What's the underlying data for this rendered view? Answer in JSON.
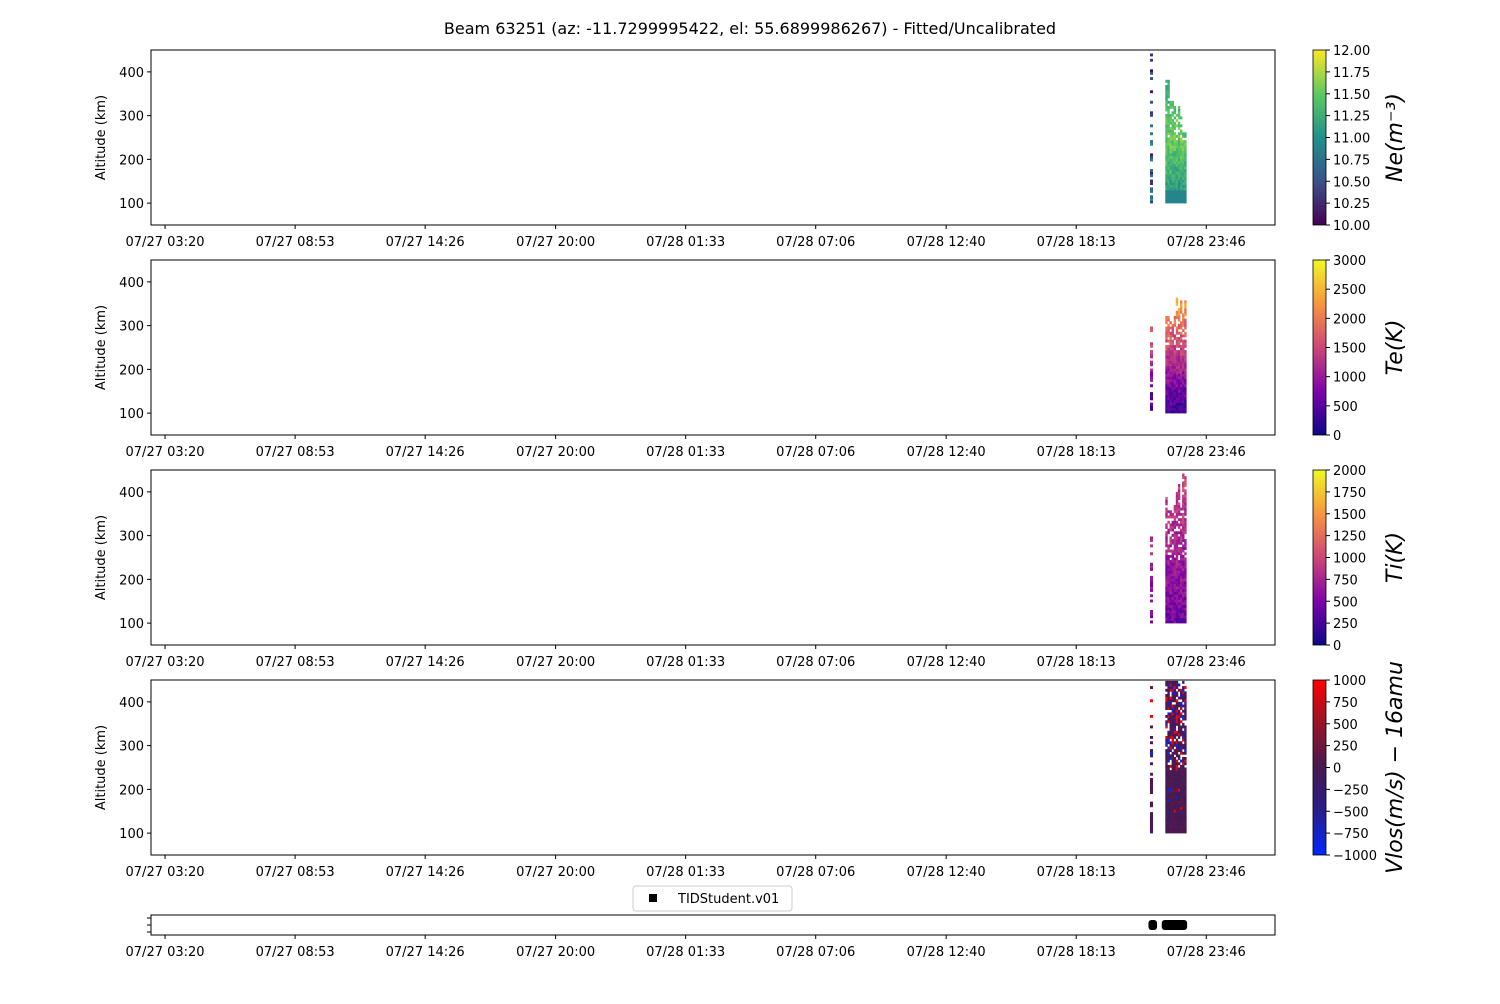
{
  "chart_data": {
    "type": "heatmap",
    "title": "Beam 63251 (az: -11.7299995422, el: 55.6899986267) - Fitted/Uncalibrated",
    "xlabel": "",
    "ylabel": "Altitude (km)",
    "x_ticks": [
      "07/27 03:20",
      "07/27 08:53",
      "07/27 14:26",
      "07/27 20:00",
      "07/28 01:33",
      "07/28 07:06",
      "07/28 12:40",
      "07/28 18:13",
      "07/28 23:46"
    ],
    "xlim": [
      "07/27 02:44",
      "07/29 02:42"
    ],
    "ylim": [
      50,
      450
    ],
    "y_ticks": [
      100,
      200,
      300,
      400
    ],
    "data_time_ranges": [
      [
        "07/28 21:22",
        "07/28 21:25"
      ],
      [
        "07/28 22:01",
        "07/28 22:55"
      ]
    ],
    "data_altitude_range": [
      100,
      445
    ],
    "panels": [
      {
        "name": "Ne",
        "colorbar_label": "Ne(m^-3)",
        "colorbar_label_display": "Ne(m⁻³)",
        "cmap": "viridis",
        "clim": [
          10,
          12
        ],
        "cb_ticks": [
          "10.00",
          "10.25",
          "10.50",
          "10.75",
          "11.00",
          "11.25",
          "11.50",
          "11.75",
          "12.00"
        ],
        "typical_value": 11.2
      },
      {
        "name": "Te",
        "colorbar_label": "Te(K)",
        "cmap": "plasma",
        "clim": [
          0,
          3000
        ],
        "cb_ticks": [
          "0",
          "500",
          "1000",
          "1500",
          "2000",
          "2500",
          "3000"
        ],
        "typical_value": 1800
      },
      {
        "name": "Ti",
        "colorbar_label": "Ti(K)",
        "cmap": "plasma",
        "clim": [
          0,
          2000
        ],
        "cb_ticks": [
          "0",
          "250",
          "500",
          "750",
          "1000",
          "1250",
          "1500",
          "1750",
          "2000"
        ],
        "typical_value": 800
      },
      {
        "name": "Vlos",
        "colorbar_label": "Vlos(m/s) − 16amu",
        "cmap": "bwr-dark",
        "clim": [
          -1000,
          1000
        ],
        "cb_ticks": [
          "−1000",
          "−750",
          "−500",
          "−250",
          "0",
          "250",
          "500",
          "750",
          "1000"
        ],
        "typical_value": 0
      }
    ],
    "legend": {
      "label": "TIDStudent.v01",
      "placement": "top-center of bottom strip",
      "marker": "black square"
    },
    "strip_segments": [
      [
        "07/28 21:18",
        "07/28 21:40"
      ],
      [
        "07/28 21:52",
        "07/28 22:57"
      ]
    ]
  },
  "colors": {
    "axis": "#000000",
    "marker": "#000000"
  }
}
